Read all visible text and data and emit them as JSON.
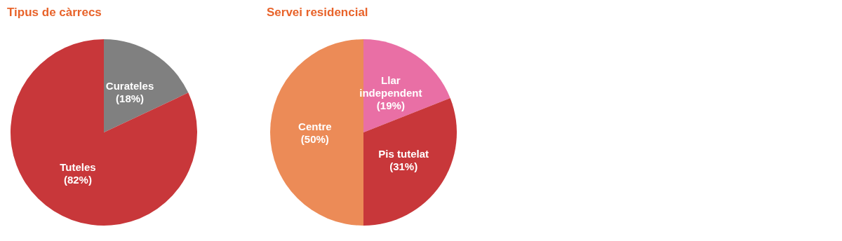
{
  "chart_data": [
    {
      "type": "pie",
      "title": "Tipus de càrrecs",
      "categories": [
        "Curateles",
        "Tuteles"
      ],
      "values": [
        18,
        82
      ],
      "colors": [
        "#808080",
        "#c8373a"
      ],
      "value_labels": [
        "(18%)",
        "(82%)"
      ]
    },
    {
      "type": "pie",
      "title": "Servei residencial",
      "categories": [
        "Llar independent",
        "Pis tutelat",
        "Centre"
      ],
      "values": [
        19,
        31,
        50
      ],
      "colors": [
        "#e96fa5",
        "#c8373a",
        "#ec8b57"
      ],
      "value_labels": [
        "(19%)",
        "(31%)",
        "(50%)"
      ]
    }
  ]
}
